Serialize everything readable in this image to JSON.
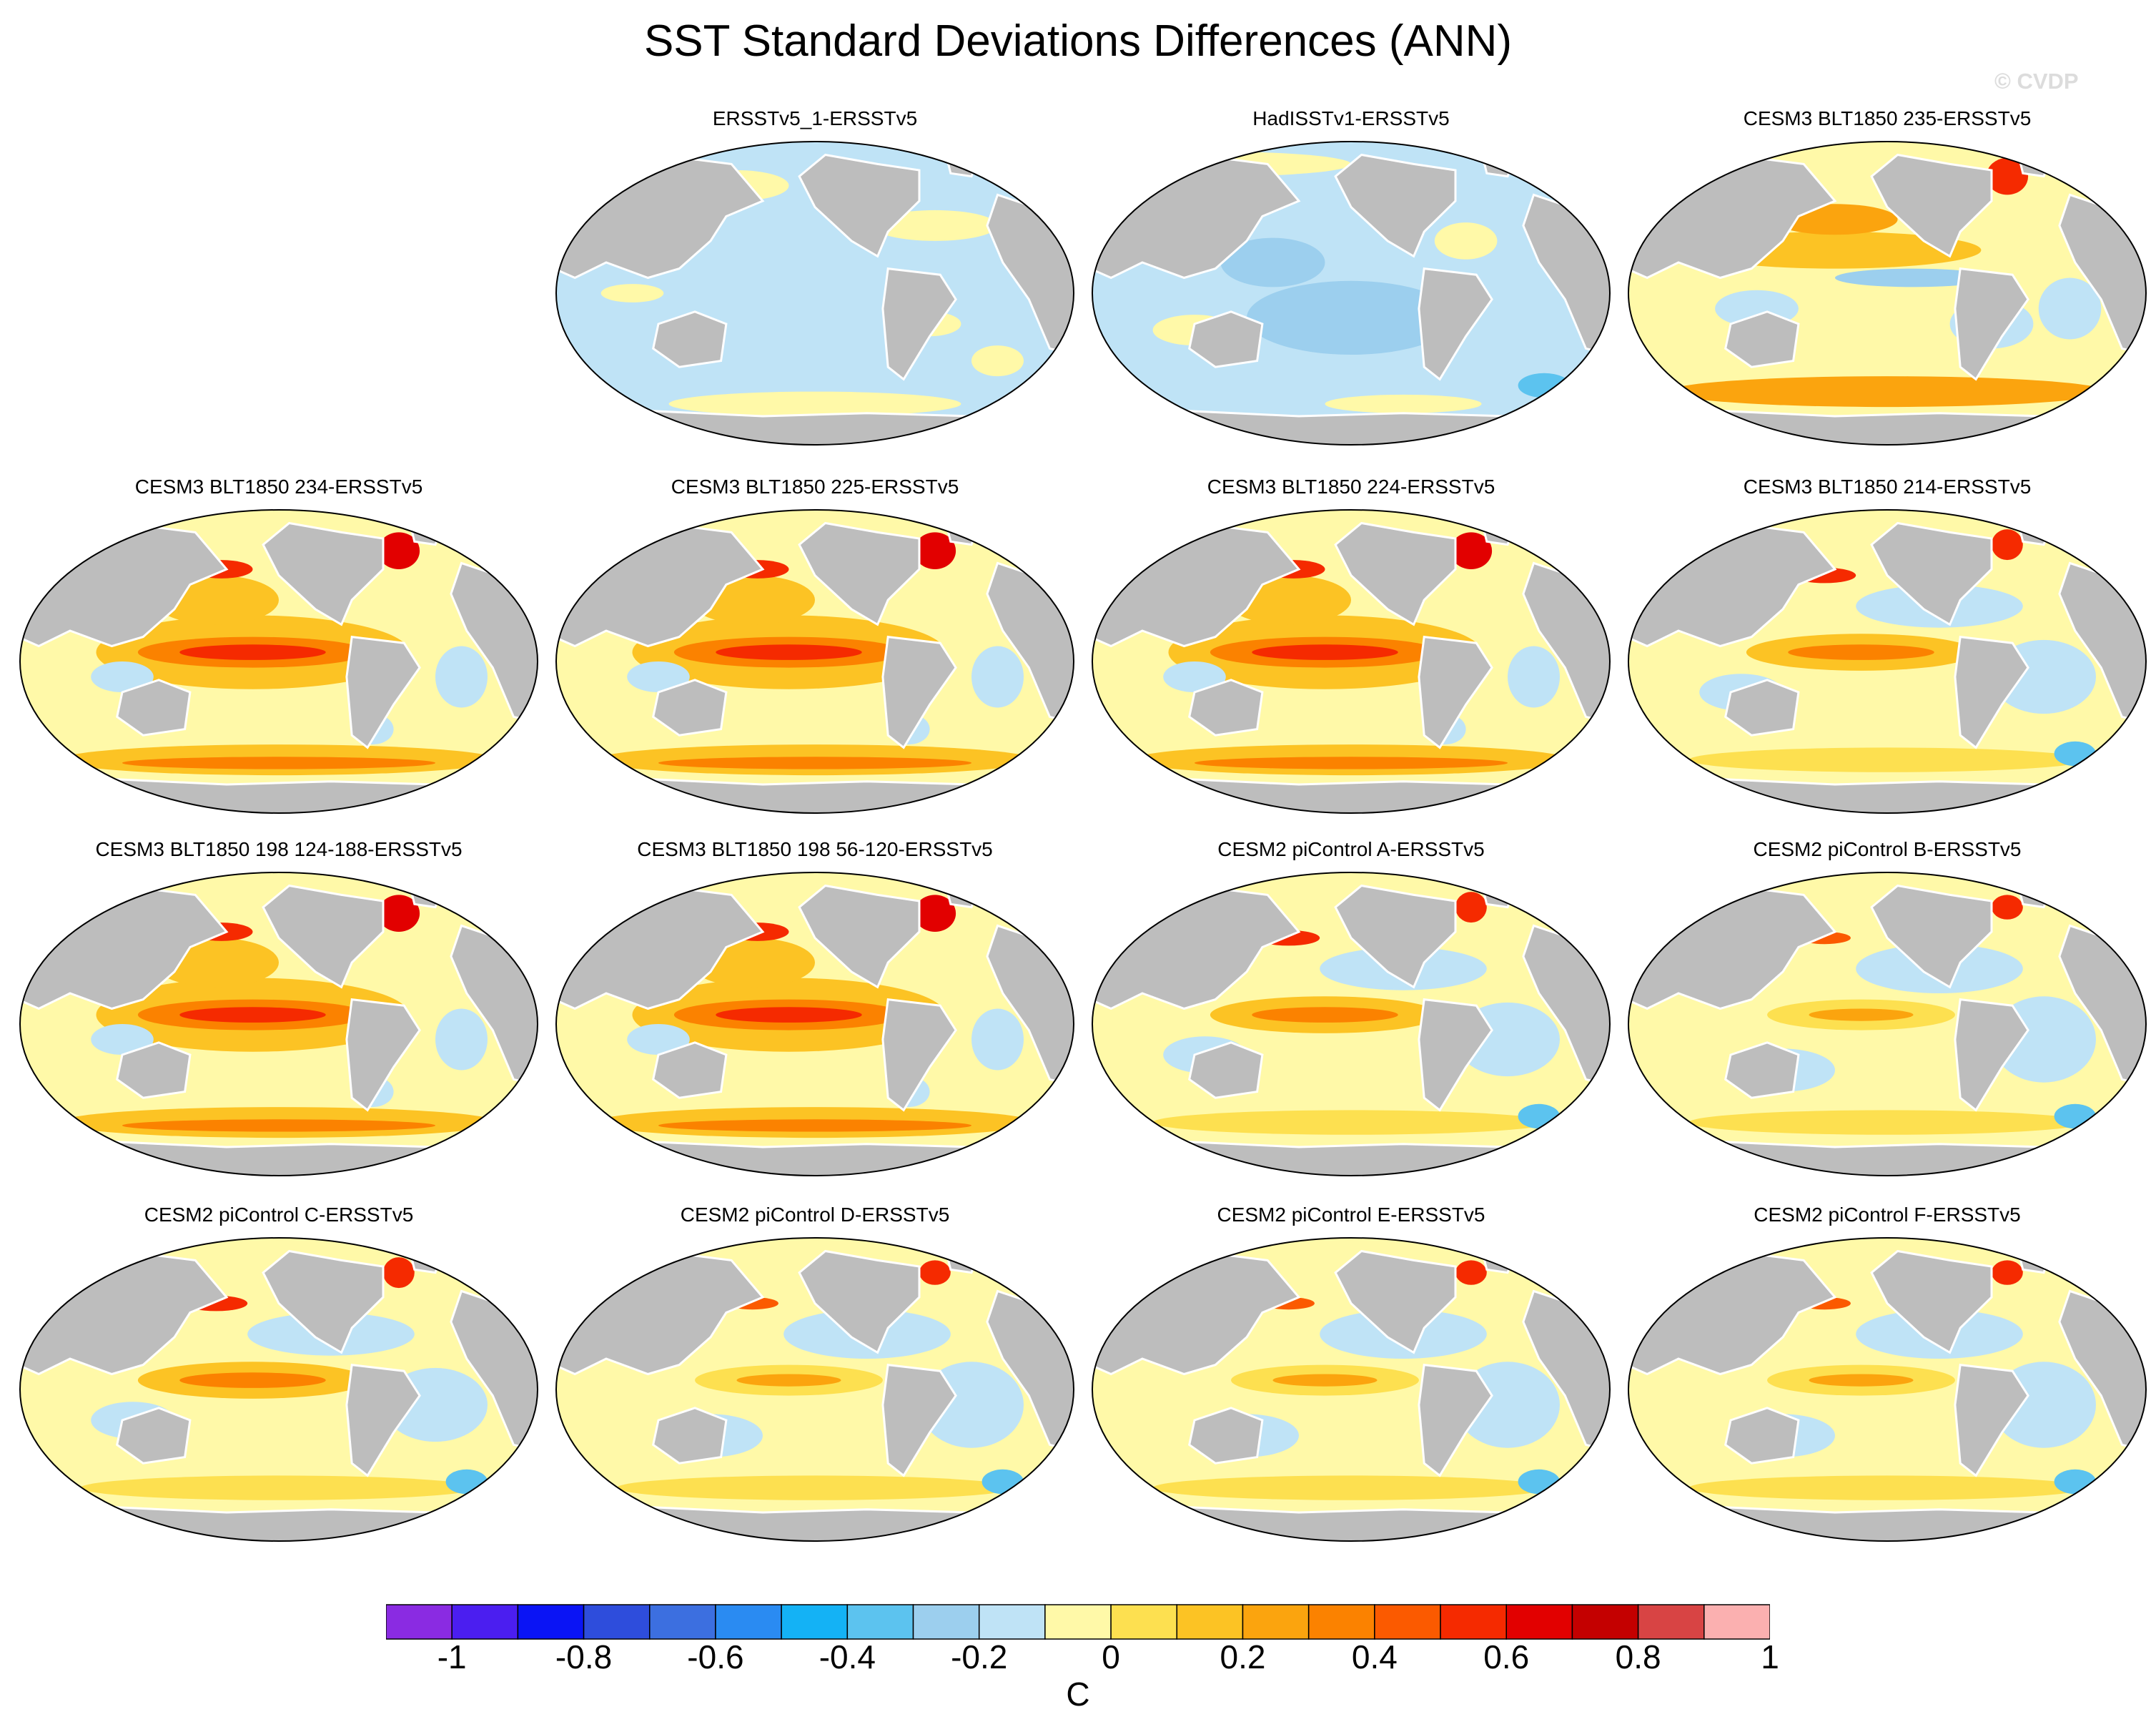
{
  "title": "SST Standard Deviations Differences (ANN)",
  "watermark": "© CVDP",
  "panels": [
    {
      "label": "ERSSTv5_1-ERSSTv5",
      "pattern": "weak"
    },
    {
      "label": "HadISSTv1-ERSSTv5",
      "pattern": "negative"
    },
    {
      "label": "CESM3 BLT1850 235-ERSSTv5",
      "pattern": "mixed"
    },
    {
      "label": "CESM3 BLT1850 234-ERSSTv5",
      "pattern": "strong"
    },
    {
      "label": "CESM3 BLT1850 225-ERSSTv5",
      "pattern": "strong"
    },
    {
      "label": "CESM3 BLT1850 224-ERSSTv5",
      "pattern": "strong"
    },
    {
      "label": "CESM3 BLT1850 214-ERSSTv5",
      "pattern": "moderate"
    },
    {
      "label": "CESM3 BLT1850 198 124-188-ERSSTv5",
      "pattern": "strong"
    },
    {
      "label": "CESM3 BLT1850 198 56-120-ERSSTv5",
      "pattern": "strong"
    },
    {
      "label": "CESM2 piControl A-ERSSTv5",
      "pattern": "moderate"
    },
    {
      "label": "CESM2 piControl B-ERSSTv5",
      "pattern": "moderate-weak"
    },
    {
      "label": "CESM2 piControl C-ERSSTv5",
      "pattern": "moderate"
    },
    {
      "label": "CESM2 piControl D-ERSSTv5",
      "pattern": "moderate-weak"
    },
    {
      "label": "CESM2 piControl E-ERSSTv5",
      "pattern": "moderate-weak"
    },
    {
      "label": "CESM2 piControl F-ERSSTv5",
      "pattern": "moderate-weak"
    }
  ],
  "colorbar": {
    "unit": "C",
    "tick_labels": [
      "-1",
      "-0.8",
      "-0.6",
      "-0.4",
      "-0.2",
      "0",
      "0.2",
      "0.4",
      "0.6",
      "0.8",
      "1"
    ],
    "colors": [
      "#8a2be2",
      "#4b1ef0",
      "#0a14f5",
      "#2e4ddc",
      "#3c6fe0",
      "#2a8bf2",
      "#14b2f5",
      "#5cc3ef",
      "#9ccfee",
      "#bfe3f6",
      "#fff9a8",
      "#fde050",
      "#fcc324",
      "#fba40e",
      "#fb8200",
      "#fb5a00",
      "#f52a00",
      "#e20000",
      "#c40000",
      "#d84444",
      "#fbb0b0"
    ]
  }
}
